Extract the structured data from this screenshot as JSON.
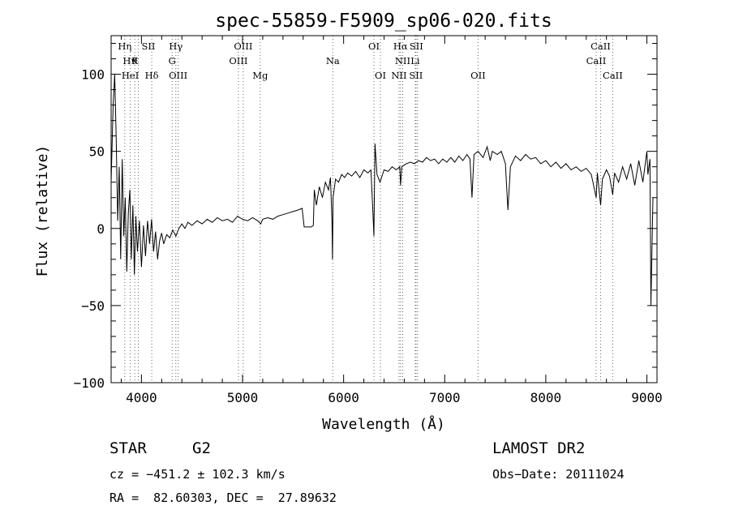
{
  "chart_data": {
    "type": "line",
    "title": "spec-55859-F5909_sp06-020.fits",
    "xlabel": "Wavelength (Å)",
    "ylabel": "Flux (relative)",
    "xlim": [
      3700,
      9100
    ],
    "ylim": [
      -100,
      125
    ],
    "x_ticks": [
      4000,
      5000,
      6000,
      7000,
      8000,
      9000
    ],
    "y_ticks": [
      -100,
      -50,
      0,
      50,
      100
    ],
    "grid": false,
    "series": [
      {
        "points": [
          [
            3700,
            30
          ],
          [
            3720,
            80
          ],
          [
            3735,
            100
          ],
          [
            3750,
            60
          ],
          [
            3765,
            5
          ],
          [
            3780,
            40
          ],
          [
            3795,
            -20
          ],
          [
            3810,
            45
          ],
          [
            3825,
            -5
          ],
          [
            3840,
            20
          ],
          [
            3855,
            -28
          ],
          [
            3870,
            10
          ],
          [
            3885,
            25
          ],
          [
            3900,
            -20
          ],
          [
            3915,
            15
          ],
          [
            3930,
            -30
          ],
          [
            3945,
            8
          ],
          [
            3960,
            -15
          ],
          [
            3980,
            5
          ],
          [
            4000,
            -25
          ],
          [
            4020,
            2
          ],
          [
            4040,
            -18
          ],
          [
            4060,
            5
          ],
          [
            4080,
            -10
          ],
          [
            4100,
            6
          ],
          [
            4120,
            -15
          ],
          [
            4140,
            -2
          ],
          [
            4160,
            -20
          ],
          [
            4180,
            -8
          ],
          [
            4200,
            -3
          ],
          [
            4220,
            -10
          ],
          [
            4250,
            -4
          ],
          [
            4280,
            -6
          ],
          [
            4310,
            -1
          ],
          [
            4340,
            -5
          ],
          [
            4370,
            0
          ],
          [
            4400,
            3
          ],
          [
            4430,
            0
          ],
          [
            4460,
            4
          ],
          [
            4500,
            2
          ],
          [
            4550,
            5
          ],
          [
            4600,
            3
          ],
          [
            4650,
            6
          ],
          [
            4700,
            4
          ],
          [
            4750,
            7
          ],
          [
            4800,
            5
          ],
          [
            4850,
            6
          ],
          [
            4900,
            4
          ],
          [
            4950,
            8
          ],
          [
            5000,
            6
          ],
          [
            5050,
            5
          ],
          [
            5100,
            7
          ],
          [
            5150,
            5
          ],
          [
            5180,
            3
          ],
          [
            5200,
            6
          ],
          [
            5250,
            7
          ],
          [
            5300,
            6
          ],
          [
            5350,
            8
          ],
          [
            5400,
            9
          ],
          [
            5450,
            10
          ],
          [
            5500,
            11
          ],
          [
            5550,
            12
          ],
          [
            5590,
            13
          ],
          [
            5610,
            1
          ],
          [
            5680,
            1
          ],
          [
            5700,
            2
          ],
          [
            5710,
            25
          ],
          [
            5730,
            15
          ],
          [
            5760,
            27
          ],
          [
            5790,
            20
          ],
          [
            5820,
            30
          ],
          [
            5850,
            25
          ],
          [
            5870,
            33
          ],
          [
            5885,
            5
          ],
          [
            5890,
            -20
          ],
          [
            5895,
            20
          ],
          [
            5920,
            32
          ],
          [
            5950,
            30
          ],
          [
            5980,
            35
          ],
          [
            6010,
            33
          ],
          [
            6040,
            36
          ],
          [
            6080,
            34
          ],
          [
            6120,
            37
          ],
          [
            6160,
            33
          ],
          [
            6200,
            38
          ],
          [
            6240,
            36
          ],
          [
            6270,
            38
          ],
          [
            6290,
            10
          ],
          [
            6300,
            -5
          ],
          [
            6310,
            55
          ],
          [
            6330,
            35
          ],
          [
            6360,
            30
          ],
          [
            6400,
            38
          ],
          [
            6440,
            37
          ],
          [
            6480,
            40
          ],
          [
            6520,
            38
          ],
          [
            6555,
            40
          ],
          [
            6563,
            28
          ],
          [
            6575,
            40
          ],
          [
            6620,
            42
          ],
          [
            6660,
            43
          ],
          [
            6700,
            42
          ],
          [
            6740,
            44
          ],
          [
            6780,
            43
          ],
          [
            6820,
            46
          ],
          [
            6860,
            44
          ],
          [
            6900,
            45
          ],
          [
            6940,
            42
          ],
          [
            6980,
            45
          ],
          [
            7020,
            43
          ],
          [
            7060,
            46
          ],
          [
            7100,
            43
          ],
          [
            7140,
            47
          ],
          [
            7180,
            44
          ],
          [
            7220,
            48
          ],
          [
            7250,
            45
          ],
          [
            7270,
            20
          ],
          [
            7290,
            48
          ],
          [
            7330,
            50
          ],
          [
            7380,
            46
          ],
          [
            7420,
            53
          ],
          [
            7450,
            44
          ],
          [
            7470,
            50
          ],
          [
            7520,
            48
          ],
          [
            7560,
            50
          ],
          [
            7600,
            42
          ],
          [
            7625,
            12
          ],
          [
            7650,
            40
          ],
          [
            7700,
            47
          ],
          [
            7750,
            44
          ],
          [
            7800,
            48
          ],
          [
            7850,
            45
          ],
          [
            7900,
            46
          ],
          [
            7950,
            42
          ],
          [
            8000,
            44
          ],
          [
            8050,
            40
          ],
          [
            8100,
            43
          ],
          [
            8150,
            39
          ],
          [
            8200,
            42
          ],
          [
            8250,
            38
          ],
          [
            8300,
            40
          ],
          [
            8350,
            37
          ],
          [
            8400,
            39
          ],
          [
            8450,
            35
          ],
          [
            8498,
            20
          ],
          [
            8510,
            36
          ],
          [
            8542,
            15
          ],
          [
            8560,
            32
          ],
          [
            8600,
            38
          ],
          [
            8630,
            34
          ],
          [
            8662,
            22
          ],
          [
            8680,
            36
          ],
          [
            8720,
            30
          ],
          [
            8760,
            40
          ],
          [
            8800,
            32
          ],
          [
            8840,
            42
          ],
          [
            8880,
            28
          ],
          [
            8920,
            44
          ],
          [
            8960,
            30
          ],
          [
            9000,
            50
          ],
          [
            9010,
            35
          ],
          [
            9030,
            45
          ],
          [
            9040,
            -50
          ],
          [
            9060,
            20
          ]
        ]
      }
    ],
    "line_labels": [
      {
        "text": "Hη",
        "x": 3835,
        "row": 0
      },
      {
        "text": "SII",
        "x": 4069,
        "row": 0
      },
      {
        "text": "Hγ",
        "x": 4340,
        "row": 0
      },
      {
        "text": "OIII",
        "x": 5007,
        "row": 0
      },
      {
        "text": "OI",
        "x": 6300,
        "row": 0
      },
      {
        "text": "Hα",
        "x": 6563,
        "row": 0
      },
      {
        "text": "SII",
        "x": 6720,
        "row": 0
      },
      {
        "text": "CaII",
        "x": 8542,
        "row": 0
      },
      {
        "text": "Hϑ",
        "x": 3889,
        "row": 1
      },
      {
        "text": "K",
        "x": 3934,
        "row": 1
      },
      {
        "text": "G",
        "x": 4304,
        "row": 1
      },
      {
        "text": "OIII",
        "x": 4959,
        "row": 1
      },
      {
        "text": "Na",
        "x": 5893,
        "row": 1
      },
      {
        "text": "NII",
        "x": 6584,
        "row": 1
      },
      {
        "text": "Li",
        "x": 6708,
        "row": 1
      },
      {
        "text": "CaII",
        "x": 8498,
        "row": 1
      },
      {
        "text": "HeI",
        "x": 3889,
        "row": 2
      },
      {
        "text": "Hδ",
        "x": 4102,
        "row": 2
      },
      {
        "text": "OIII",
        "x": 4363,
        "row": 2
      },
      {
        "text": "Mg",
        "x": 5175,
        "row": 2
      },
      {
        "text": "OI",
        "x": 6364,
        "row": 2
      },
      {
        "text": "NII",
        "x": 6548,
        "row": 2
      },
      {
        "text": "SII",
        "x": 6716,
        "row": 2
      },
      {
        "text": "OII",
        "x": 7330,
        "row": 2
      },
      {
        "text": "CaII",
        "x": 8662,
        "row": 2
      }
    ],
    "line_markers": [
      3835,
      3889,
      3934,
      3969,
      4102,
      4304,
      4340,
      4363,
      4959,
      5007,
      5175,
      5893,
      6300,
      6364,
      6548,
      6563,
      6584,
      6708,
      6716,
      6731,
      7330,
      8498,
      8542,
      8662
    ]
  },
  "footer": {
    "object_class": "STAR",
    "subclass": "G2",
    "survey": "LAMOST DR2",
    "cz": "cz = −451.2 ± 102.3 km/s",
    "obs_date": "Obs−Date: 20111024",
    "coords": "RA =  82.60303, DEC =  27.89632"
  }
}
